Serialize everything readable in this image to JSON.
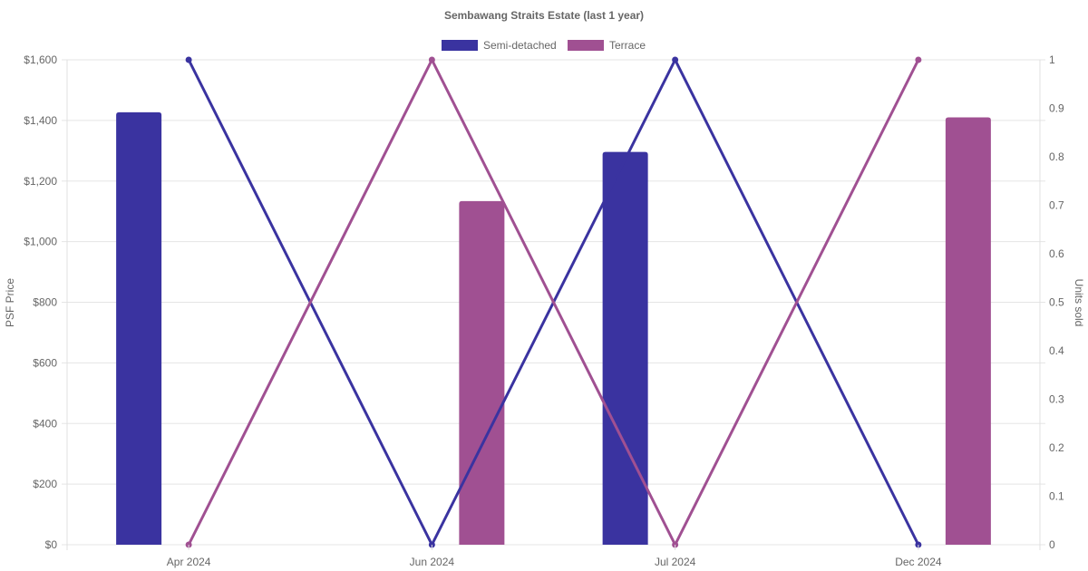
{
  "chart_data": {
    "type": "bar",
    "title": "Sembawang Straits Estate (last 1 year)",
    "categories": [
      "Apr 2024",
      "Jun 2024",
      "Jul 2024",
      "Dec 2024"
    ],
    "y_left": {
      "label": "PSF Price",
      "range": [
        0,
        1600
      ],
      "ticks": [
        "$0",
        "$200",
        "$400",
        "$600",
        "$800",
        "$1,000",
        "$1,200",
        "$1,400",
        "$1,600"
      ],
      "tick_values": [
        0,
        200,
        400,
        600,
        800,
        1000,
        1200,
        1400,
        1600
      ]
    },
    "y_right": {
      "label": "Units sold",
      "range": [
        0,
        1
      ],
      "ticks": [
        "0",
        "0.1",
        "0.2",
        "0.3",
        "0.4",
        "0.5",
        "0.6",
        "0.7",
        "0.8",
        "0.9",
        "1"
      ],
      "tick_values": [
        0,
        0.1,
        0.2,
        0.3,
        0.4,
        0.5,
        0.6,
        0.7,
        0.8,
        0.9,
        1
      ]
    },
    "grid": true,
    "legend": {
      "position": "top",
      "entries": [
        "Semi-detached",
        "Terrace"
      ]
    },
    "series": [
      {
        "name": "Semi-detached",
        "color": "#3a33a0",
        "psf": [
          1427,
          null,
          1296,
          null
        ],
        "units_sold": [
          1,
          0,
          1,
          0
        ]
      },
      {
        "name": "Terrace",
        "color": "#a05092",
        "psf": [
          null,
          1134,
          null,
          1410
        ],
        "units_sold": [
          0,
          1,
          0,
          1
        ]
      }
    ]
  }
}
